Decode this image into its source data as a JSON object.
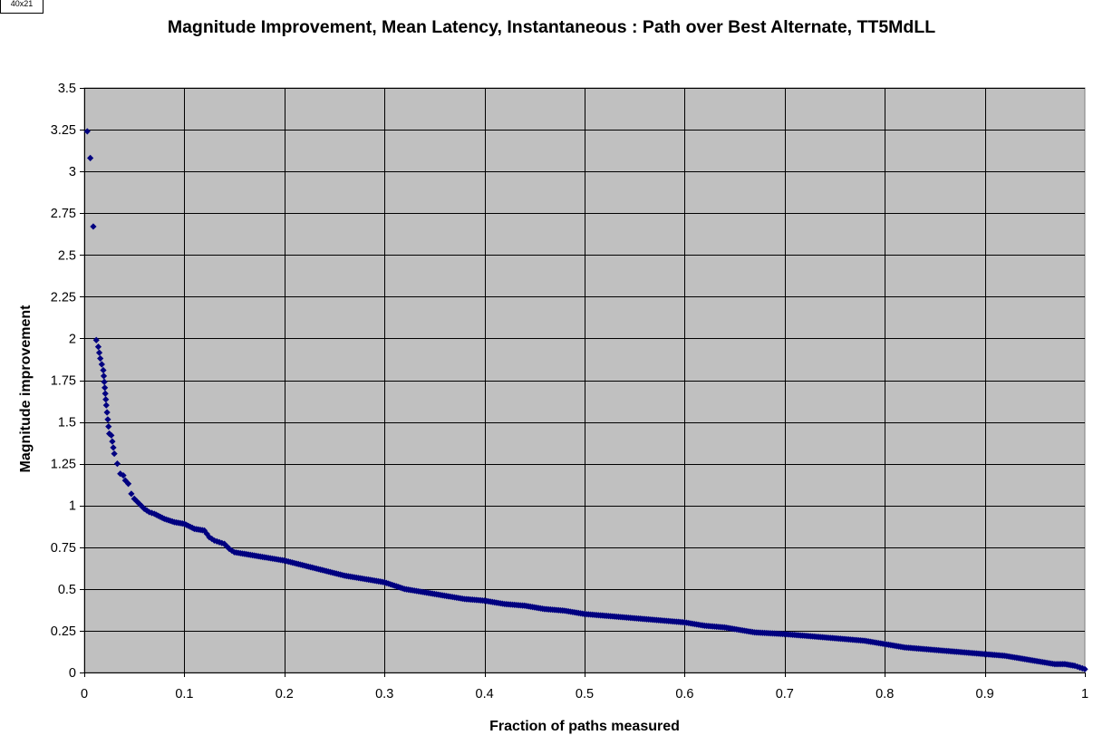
{
  "corner_tag": "40x21",
  "chart_data": {
    "type": "scatter",
    "title": "Magnitude Improvement, Mean Latency, Instantaneous :  Path over Best Alternate, TT5MdLL",
    "xlabel": "Fraction of paths measured",
    "ylabel": "Magnitude improvement",
    "xlim": [
      0,
      1
    ],
    "ylim": [
      0,
      3.5
    ],
    "xticks": [
      "0",
      "0.1",
      "0.2",
      "0.3",
      "0.4",
      "0.5",
      "0.6",
      "0.7",
      "0.8",
      "0.9",
      "1"
    ],
    "yticks": [
      "0",
      "0.25",
      "0.5",
      "0.75",
      "1",
      "1.25",
      "1.5",
      "1.75",
      "2",
      "2.25",
      "2.5",
      "2.75",
      "3",
      "3.25",
      "3.5"
    ],
    "grid": true,
    "legend": "none",
    "colors": {
      "plot_bg": "#c0c0c0",
      "marker": "#000080",
      "grid": "#000000"
    },
    "x": [
      0.003,
      0.006,
      0.009,
      0.012,
      0.014,
      0.016,
      0.019,
      0.022,
      0.025,
      0.027,
      0.03,
      0.033,
      0.036,
      0.039,
      0.041,
      0.044,
      0.047,
      0.05,
      0.055,
      0.06,
      0.065,
      0.07,
      0.08,
      0.09,
      0.1,
      0.11,
      0.12,
      0.125,
      0.13,
      0.135,
      0.14,
      0.145,
      0.15,
      0.16,
      0.18,
      0.2,
      0.22,
      0.24,
      0.26,
      0.28,
      0.3,
      0.32,
      0.34,
      0.36,
      0.38,
      0.4,
      0.42,
      0.44,
      0.46,
      0.48,
      0.5,
      0.52,
      0.54,
      0.56,
      0.58,
      0.6,
      0.62,
      0.64,
      0.66,
      0.67,
      0.7,
      0.72,
      0.74,
      0.76,
      0.78,
      0.8,
      0.82,
      0.84,
      0.86,
      0.88,
      0.9,
      0.92,
      0.94,
      0.95,
      0.96,
      0.97,
      0.98,
      0.99,
      0.995,
      1.0
    ],
    "y": [
      3.24,
      3.08,
      2.67,
      1.99,
      1.95,
      1.88,
      1.81,
      1.6,
      1.43,
      1.42,
      1.31,
      1.25,
      1.19,
      1.18,
      1.15,
      1.13,
      1.07,
      1.04,
      1.01,
      0.98,
      0.96,
      0.95,
      0.92,
      0.9,
      0.89,
      0.86,
      0.85,
      0.81,
      0.79,
      0.78,
      0.77,
      0.74,
      0.72,
      0.71,
      0.69,
      0.67,
      0.64,
      0.61,
      0.58,
      0.56,
      0.54,
      0.5,
      0.48,
      0.46,
      0.44,
      0.43,
      0.41,
      0.4,
      0.38,
      0.37,
      0.35,
      0.34,
      0.33,
      0.32,
      0.31,
      0.3,
      0.28,
      0.27,
      0.25,
      0.24,
      0.23,
      0.22,
      0.21,
      0.2,
      0.19,
      0.17,
      0.15,
      0.14,
      0.13,
      0.12,
      0.11,
      0.1,
      0.08,
      0.07,
      0.06,
      0.05,
      0.05,
      0.04,
      0.03,
      0.02
    ]
  }
}
